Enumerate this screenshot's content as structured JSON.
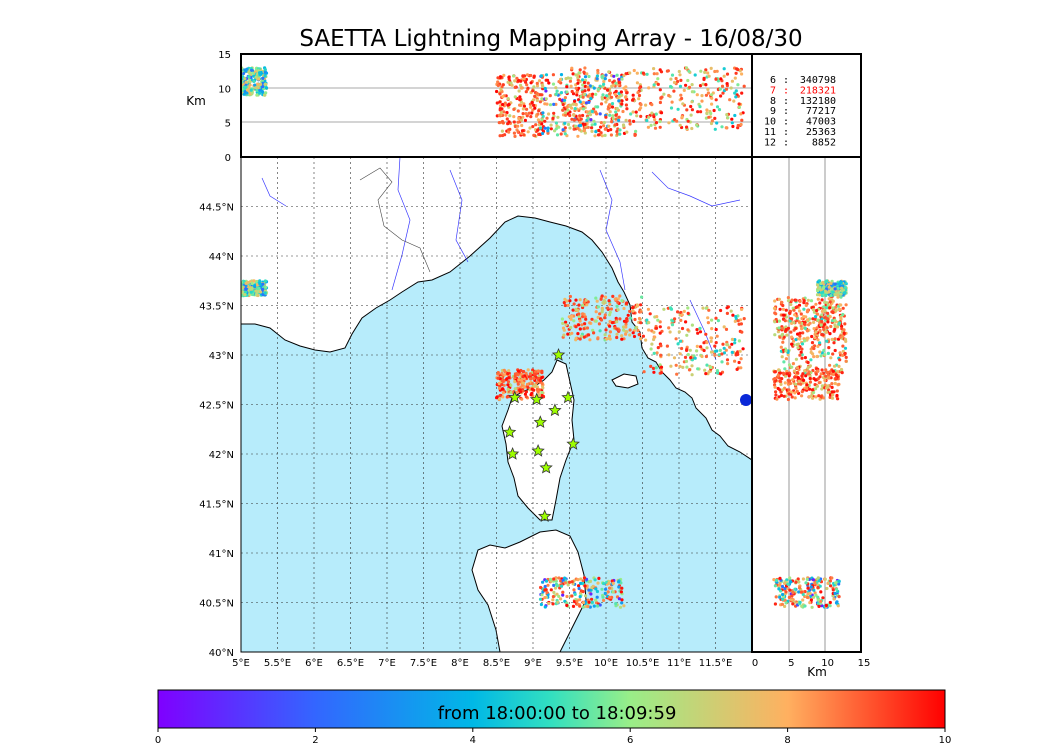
{
  "title": "SAETTA Lightning Mapping Array - 16/08/30",
  "chart_data": {
    "type": "scatter",
    "map": {
      "lon_range": [
        5,
        12
      ],
      "lat_range": [
        40,
        45
      ],
      "lon_ticks": [
        "5°E",
        "5.5°E",
        "6°E",
        "6.5°E",
        "7°E",
        "7.5°E",
        "8°E",
        "8.5°E",
        "9°E",
        "9.5°E",
        "10°E",
        "10.5°E",
        "11°E",
        "11.5°E"
      ],
      "lat_ticks": [
        "40°N",
        "40.5°N",
        "41°N",
        "41.5°N",
        "42°N",
        "42.5°N",
        "43°N",
        "43.5°N",
        "44°N",
        "44.5°N"
      ],
      "sea_color": "#b7ecfb",
      "grid": true
    },
    "altitude_axis": {
      "label": "Km",
      "ticks": [
        "0",
        "5",
        "10",
        "15"
      ],
      "range": [
        0,
        15
      ]
    },
    "station_counts": [
      {
        "stations": "6",
        "count": "340798",
        "highlight": false
      },
      {
        "stations": "7",
        "count": "218321",
        "highlight": true
      },
      {
        "stations": "8",
        "count": "132180",
        "highlight": false
      },
      {
        "stations": "9",
        "count": "77217",
        "highlight": false
      },
      {
        "stations": "10",
        "count": "47003",
        "highlight": false
      },
      {
        "stations": "11",
        "count": "25363",
        "highlight": false
      },
      {
        "stations": "12",
        "count": "8852",
        "highlight": false
      }
    ],
    "stations": [
      [
        9.35,
        43.0
      ],
      [
        8.75,
        42.57
      ],
      [
        9.05,
        42.55
      ],
      [
        9.48,
        42.57
      ],
      [
        9.3,
        42.44
      ],
      [
        9.1,
        42.32
      ],
      [
        8.68,
        42.22
      ],
      [
        9.55,
        42.1
      ],
      [
        9.07,
        42.03
      ],
      [
        8.72,
        42.0
      ],
      [
        9.18,
        41.86
      ],
      [
        9.16,
        41.37
      ]
    ],
    "lightning_clusters": [
      {
        "lon": [
          9.4,
          10.5
        ],
        "lat": [
          43.15,
          43.6
        ],
        "alt": [
          3,
          13
        ],
        "time": [
          5,
          10
        ]
      },
      {
        "lon": [
          10.5,
          11.9
        ],
        "lat": [
          42.8,
          43.5
        ],
        "alt": [
          4,
          13
        ],
        "time": [
          4,
          10
        ]
      },
      {
        "lon": [
          8.5,
          9.15
        ],
        "lat": [
          42.55,
          42.85
        ],
        "alt": [
          3,
          12
        ],
        "time": [
          6,
          10
        ]
      },
      {
        "lon": [
          9.1,
          10.25
        ],
        "lat": [
          40.45,
          40.75
        ],
        "alt": [
          3,
          12
        ],
        "time": [
          0,
          10
        ]
      },
      {
        "lon": [
          5.0,
          5.35
        ],
        "lat": [
          43.6,
          43.75
        ],
        "alt": [
          9,
          13
        ],
        "time": [
          1,
          8
        ]
      }
    ],
    "colorbar": {
      "label": "from 18:00:00 to 18:09:59",
      "range": [
        0,
        10
      ],
      "ticks": [
        "0",
        "2",
        "4",
        "6",
        "8",
        "10"
      ],
      "colormap": "rainbow"
    }
  }
}
